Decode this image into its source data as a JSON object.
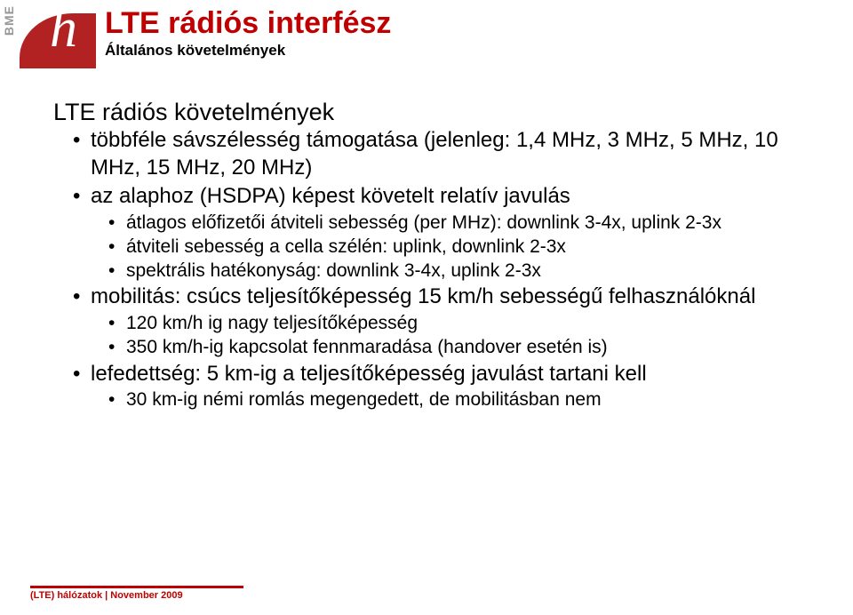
{
  "colors": {
    "accent": "#c00000",
    "logo": "#b22222",
    "mutedText": "#999999",
    "bodyText": "#000000",
    "background": "#ffffff"
  },
  "typography": {
    "title_fontsize": 34,
    "subtitle_fontsize": 17,
    "lvl1_fontsize": 27,
    "lvl2_fontsize": 24,
    "lvl3_fontsize": 21,
    "lvl4_fontsize": 18.5,
    "footer_fontsize": 11,
    "font_family": "Arial"
  },
  "logo": {
    "org": "BME",
    "mark_letter": "h"
  },
  "title": "LTE rádiós interfész",
  "subtitle": "Általános követelmények",
  "content": {
    "heading": "LTE rádiós követelmények",
    "b1": "többféle sávszélesség támogatása (jelenleg: 1,4 MHz, 3 MHz, 5 MHz, 10 MHz, 15 MHz, 20 MHz)",
    "b2": "az alaphoz (HSDPA) képest követelt relatív javulás",
    "b2_1": "átlagos előfizetői átviteli sebesség (per MHz): downlink 3-4x, uplink 2-3x",
    "b2_2": "átviteli sebesség a cella szélén: uplink, downlink 2-3x",
    "b2_3": "spektrális hatékonyság: downlink 3-4x, uplink 2-3x",
    "b3": "mobilitás: csúcs teljesítőképesség 15 km/h sebességű felhasználóknál",
    "b3_1": "120 km/h ig nagy teljesítőképesség",
    "b3_2": "350 km/h-ig kapcsolat fennmaradása (handover esetén is)",
    "b4": "lefedettség: 5 km-ig a teljesítőképesség javulást tartani kell",
    "b4_1": "30 km-ig némi romlás megengedett, de mobilitásban nem"
  },
  "footer": "(LTE) hálózatok | November 2009"
}
